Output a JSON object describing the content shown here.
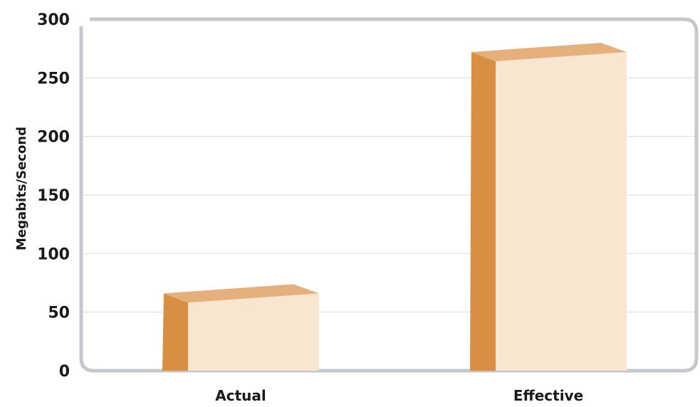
{
  "chart_data": {
    "type": "bar",
    "style": "3d",
    "categories": [
      "Actual",
      "Effective"
    ],
    "values": [
      66,
      272
    ],
    "xlabel": "",
    "ylabel": "Megabits/Second",
    "ylim": [
      0,
      300
    ],
    "yticks": [
      0,
      50,
      100,
      150,
      200,
      250,
      300
    ],
    "grid": true,
    "legend": "none",
    "colors": {
      "bar_front": "#f8e6d0",
      "bar_side": "#d88f44",
      "bar_top": "#e6b07c",
      "frame": "#c4c8cc",
      "grid": "#d8dadc"
    }
  }
}
